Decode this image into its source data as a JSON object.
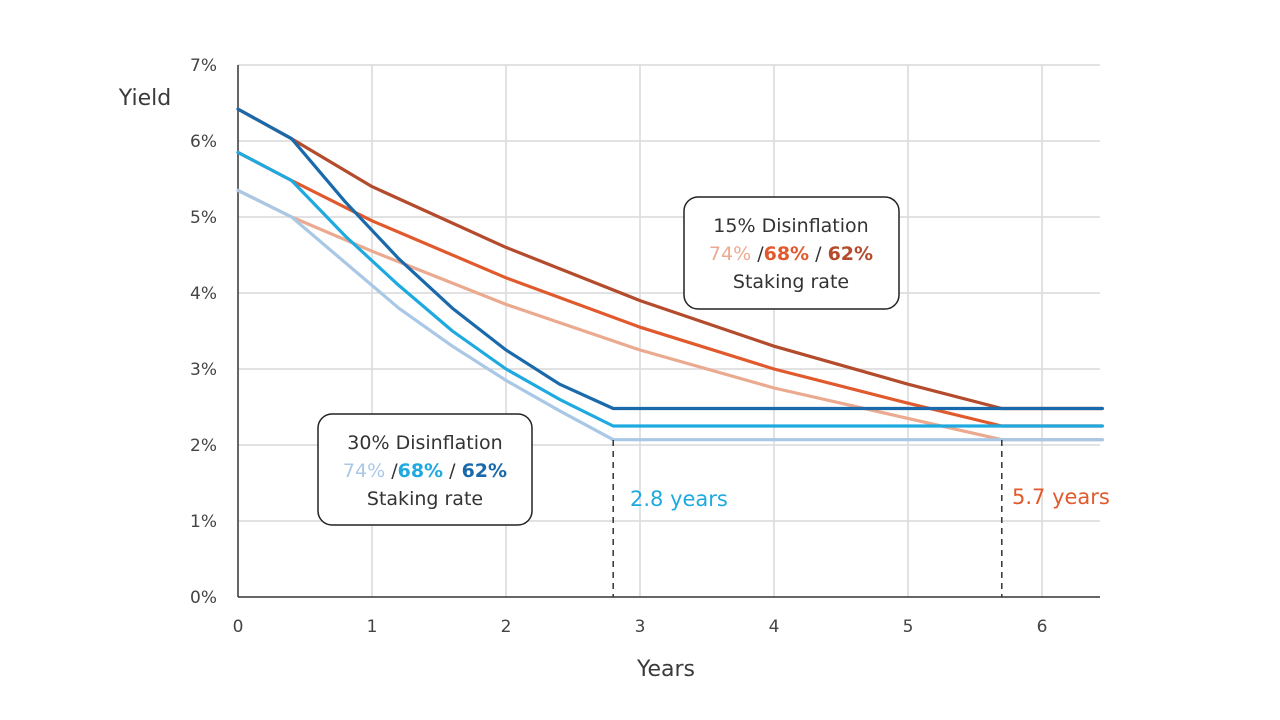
{
  "chart_data": {
    "type": "line",
    "title": "",
    "xlabel": "Years",
    "ylabel": "Yield",
    "xlim": [
      0,
      6.45
    ],
    "ylim": [
      0,
      7
    ],
    "x_ticks": [
      "0",
      "1",
      "2",
      "3",
      "4",
      "5",
      "6"
    ],
    "y_ticks": [
      "0%",
      "1%",
      "2%",
      "3%",
      "4%",
      "5%",
      "6%",
      "7%"
    ],
    "grid": true,
    "series": [
      {
        "color": "#ebaa90",
        "points": [
          [
            0,
            5.35
          ],
          [
            0.4,
            5.0
          ],
          [
            1,
            4.55
          ],
          [
            2,
            3.85
          ],
          [
            3,
            3.25
          ],
          [
            4,
            2.75
          ],
          [
            5,
            2.35
          ],
          [
            5.7,
            2.07
          ],
          [
            6.45,
            2.07
          ]
        ]
      },
      {
        "color": "#e15a2d",
        "points": [
          [
            0,
            5.85
          ],
          [
            0.4,
            5.48
          ],
          [
            1,
            4.95
          ],
          [
            2,
            4.2
          ],
          [
            3,
            3.55
          ],
          [
            4,
            3.0
          ],
          [
            5,
            2.55
          ],
          [
            5.7,
            2.25
          ],
          [
            6.45,
            2.25
          ]
        ]
      },
      {
        "color": "#b34b2c",
        "points": [
          [
            0,
            6.42
          ],
          [
            0.4,
            6.03
          ],
          [
            1,
            5.4
          ],
          [
            2,
            4.6
          ],
          [
            3,
            3.9
          ],
          [
            4,
            3.3
          ],
          [
            5,
            2.8
          ],
          [
            5.7,
            2.48
          ],
          [
            6.45,
            2.48
          ]
        ]
      },
      {
        "color": "#a9c8e6",
        "points": [
          [
            0,
            5.35
          ],
          [
            0.4,
            5.0
          ],
          [
            0.8,
            4.4
          ],
          [
            1.2,
            3.8
          ],
          [
            1.6,
            3.3
          ],
          [
            2.0,
            2.85
          ],
          [
            2.4,
            2.45
          ],
          [
            2.8,
            2.07
          ],
          [
            6.45,
            2.07
          ]
        ]
      },
      {
        "color": "#1eaae0",
        "points": [
          [
            0,
            5.85
          ],
          [
            0.4,
            5.48
          ],
          [
            0.8,
            4.75
          ],
          [
            1.2,
            4.1
          ],
          [
            1.6,
            3.5
          ],
          [
            2.0,
            3.0
          ],
          [
            2.4,
            2.6
          ],
          [
            2.8,
            2.25
          ],
          [
            6.45,
            2.25
          ]
        ]
      },
      {
        "color": "#1a6aab",
        "points": [
          [
            0,
            6.42
          ],
          [
            0.4,
            6.03
          ],
          [
            0.8,
            5.2
          ],
          [
            1.2,
            4.45
          ],
          [
            1.6,
            3.8
          ],
          [
            2.0,
            3.25
          ],
          [
            2.4,
            2.8
          ],
          [
            2.8,
            2.48
          ],
          [
            6.45,
            2.48
          ]
        ]
      }
    ],
    "annotations": {
      "box15": {
        "line1": "15% Disinflation",
        "pct_a": "74%",
        "sep_a": " /",
        "pct_b": "68%",
        "sep_b": " / ",
        "pct_c": "62%",
        "line3": "Staking rate",
        "color_a": "#ebaa90",
        "color_b": "#e15a2d",
        "color_c": "#b34b2c"
      },
      "box30": {
        "line1": "30% Disinflation",
        "pct_a": "74%",
        "sep_a": " /",
        "pct_b": "68%",
        "sep_b": " / ",
        "pct_c": "62%",
        "line3": "Staking rate",
        "color_a": "#a9c8e6",
        "color_b": "#1eaae0",
        "color_c": "#1a6aab"
      },
      "marker_28": {
        "x": 2.8,
        "label": "2.8 years",
        "color": "#1eaae0"
      },
      "marker_57": {
        "x": 5.7,
        "label": "5.7 years",
        "color": "#e15a2d"
      }
    }
  }
}
